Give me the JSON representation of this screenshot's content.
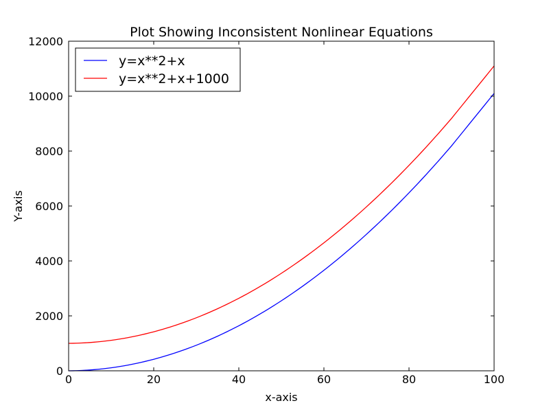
{
  "chart_data": {
    "type": "line",
    "title": "Plot Showing Inconsistent Nonlinear Equations",
    "xlabel": "x-axis",
    "ylabel": "Y-axis",
    "xlim": [
      0,
      100
    ],
    "ylim": [
      0,
      12000
    ],
    "x_ticks": [
      "0",
      "20",
      "40",
      "60",
      "80",
      "100"
    ],
    "y_ticks": [
      "0",
      "2000",
      "4000",
      "6000",
      "8000",
      "10000",
      "12000"
    ],
    "grid": false,
    "legend_position": "top-left",
    "x": [
      0,
      10,
      20,
      30,
      40,
      50,
      60,
      70,
      80,
      90,
      100
    ],
    "series": [
      {
        "name": "y=x**2+x",
        "color": "#0000ff",
        "values": [
          0,
          110,
          420,
          930,
          1640,
          2550,
          3660,
          4970,
          6480,
          8190,
          10100
        ]
      },
      {
        "name": "y=x**2+x+1000",
        "color": "#ff0000",
        "values": [
          1000,
          1110,
          1420,
          1930,
          2640,
          3550,
          4660,
          5970,
          7480,
          9190,
          11100
        ]
      }
    ]
  }
}
